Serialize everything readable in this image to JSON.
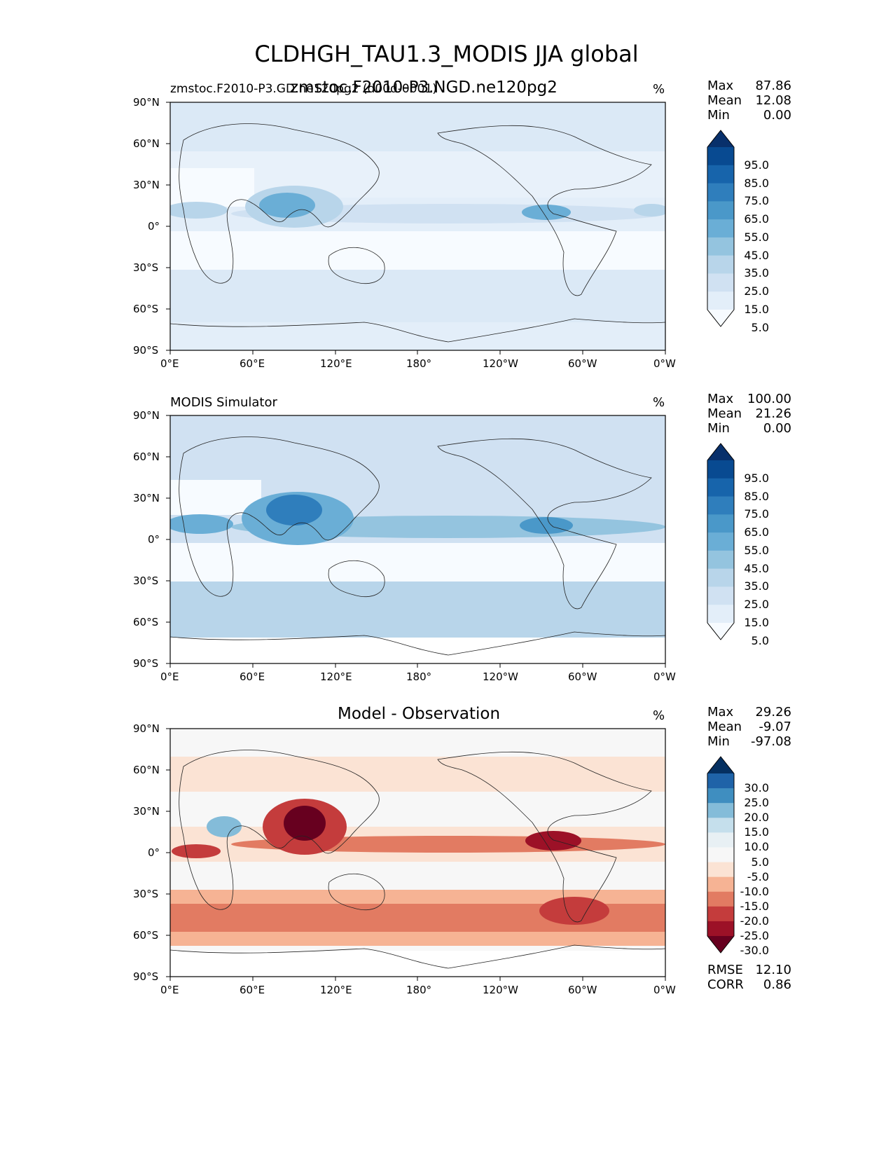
{
  "figure_title": "CLDHGH_TAU1.3_MODIS JJA global",
  "chart_data": [
    {
      "type": "heatmap",
      "panel": "test",
      "title_left": "zmstoc.F2010-P3.GD.ne120pg2 (d00d-0001)",
      "title_center": "zmstoc.F2010-P3.NGD.ne120pg2",
      "units": "%",
      "stats": {
        "max_label": "Max",
        "max": "87.86",
        "mean_label": "Mean",
        "mean": "12.08",
        "min_label": "Min",
        "min": "0.00"
      },
      "xlim": [
        0,
        360
      ],
      "ylim": [
        -90,
        90
      ],
      "xticks": [
        "0°E",
        "60°E",
        "120°E",
        "180°",
        "120°W",
        "60°W",
        "0°W"
      ],
      "yticks": [
        "90°N",
        "60°N",
        "30°N",
        "0°",
        "30°S",
        "60°S",
        "90°S"
      ],
      "levels": [
        "95.0",
        "85.0",
        "75.0",
        "65.0",
        "55.0",
        "45.0",
        "35.0",
        "25.0",
        "15.0",
        "5.0"
      ],
      "colors": [
        "#08306b",
        "#084a91",
        "#1764ab",
        "#2f7ebc",
        "#4a98c9",
        "#6aaed6",
        "#94c4df",
        "#b8d5ea",
        "#d0e1f2",
        "#e3eef9",
        "#f7fbff"
      ]
    },
    {
      "type": "heatmap",
      "panel": "reference",
      "title_left": "MODIS Simulator",
      "units": "%",
      "stats": {
        "max_label": "Max",
        "max": "100.00",
        "mean_label": "Mean",
        "mean": "21.26",
        "min_label": "Min",
        "min": "0.00"
      },
      "xlim": [
        0,
        360
      ],
      "ylim": [
        -90,
        90
      ],
      "xticks": [
        "0°E",
        "60°E",
        "120°E",
        "180°",
        "120°W",
        "60°W",
        "0°W"
      ],
      "yticks": [
        "90°N",
        "60°N",
        "30°N",
        "0°",
        "30°S",
        "60°S",
        "90°S"
      ],
      "levels": [
        "95.0",
        "85.0",
        "75.0",
        "65.0",
        "55.0",
        "45.0",
        "35.0",
        "25.0",
        "15.0",
        "5.0"
      ],
      "colors": [
        "#08306b",
        "#084a91",
        "#1764ab",
        "#2f7ebc",
        "#4a98c9",
        "#6aaed6",
        "#94c4df",
        "#b8d5ea",
        "#d0e1f2",
        "#e3eef9",
        "#f7fbff"
      ]
    },
    {
      "type": "heatmap",
      "panel": "difference",
      "title_center": "Model - Observation",
      "units": "%",
      "stats": {
        "max_label": "Max",
        "max": "29.26",
        "mean_label": "Mean",
        "mean": "-9.07",
        "min_label": "Min",
        "min": "-97.08"
      },
      "rmse_label": "RMSE",
      "rmse": "12.10",
      "corr_label": "CORR",
      "corr": "0.86",
      "xlim": [
        0,
        360
      ],
      "ylim": [
        -90,
        90
      ],
      "xticks": [
        "0°E",
        "60°E",
        "120°E",
        "180°",
        "120°W",
        "60°W",
        "0°W"
      ],
      "yticks": [
        "90°N",
        "60°N",
        "30°N",
        "0°",
        "30°S",
        "60°S",
        "90°S"
      ],
      "levels": [
        "30.0",
        "25.0",
        "20.0",
        "15.0",
        "10.0",
        "5.0",
        "-5.0",
        "-10.0",
        "-15.0",
        "-20.0",
        "-25.0",
        "-30.0"
      ],
      "colors": [
        "#053061",
        "#1f63a8",
        "#3f8ec0",
        "#84bcd9",
        "#c5dfec",
        "#e8f0f4",
        "#f7f7f7",
        "#fbe3d4",
        "#f6b394",
        "#e27b62",
        "#c43c3c",
        "#9c1127",
        "#67001f"
      ]
    }
  ]
}
